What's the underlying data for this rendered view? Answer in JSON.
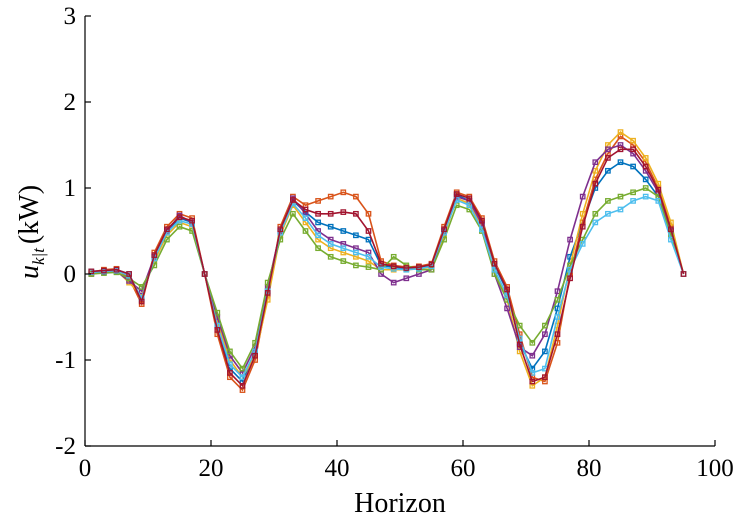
{
  "chart_data": {
    "type": "line",
    "title": "",
    "xlabel": "Horizon",
    "ylabel_main": "u",
    "ylabel_sub": "k|t",
    "ylabel_unit": "(kW)",
    "xlim": [
      0,
      100
    ],
    "ylim": [
      -2,
      3
    ],
    "xticks": [
      0,
      20,
      40,
      60,
      80,
      100
    ],
    "yticks": [
      -2,
      -1,
      0,
      1,
      2,
      3
    ],
    "xtick_labels": [
      "0",
      "20",
      "40",
      "60",
      "80",
      "100"
    ],
    "ytick_labels": [
      "-2",
      "-1",
      "0",
      "1",
      "2",
      "3"
    ],
    "grid": false,
    "legend": "none",
    "marker": "square",
    "colors": [
      "#0072bd",
      "#d95319",
      "#edb120",
      "#7e2f8e",
      "#77ac30",
      "#4dbeee",
      "#a2142f"
    ],
    "x": [
      1,
      3,
      5,
      7,
      9,
      11,
      13,
      15,
      17,
      19,
      21,
      23,
      25,
      27,
      29,
      31,
      33,
      35,
      37,
      39,
      41,
      43,
      45,
      47,
      49,
      51,
      53,
      55,
      57,
      59,
      61,
      63,
      65,
      67,
      69,
      71,
      73,
      75,
      77,
      79,
      81,
      83,
      85,
      87,
      89,
      91,
      93,
      95
    ],
    "series": [
      {
        "values": [
          0.03,
          0.04,
          0.05,
          0.0,
          -0.3,
          0.2,
          0.5,
          0.65,
          0.6,
          0.0,
          -0.6,
          -1.1,
          -1.25,
          -0.9,
          -0.2,
          0.5,
          0.85,
          0.72,
          0.6,
          0.55,
          0.5,
          0.45,
          0.4,
          0.1,
          0.08,
          0.06,
          0.07,
          0.1,
          0.5,
          0.92,
          0.85,
          0.6,
          0.1,
          -0.2,
          -0.8,
          -1.1,
          -0.9,
          -0.4,
          0.2,
          0.6,
          1.0,
          1.2,
          1.3,
          1.25,
          1.1,
          0.9,
          0.5,
          0.0
        ]
      },
      {
        "values": [
          0.02,
          0.05,
          0.06,
          -0.05,
          -0.35,
          0.25,
          0.55,
          0.7,
          0.65,
          0.0,
          -0.7,
          -1.2,
          -1.35,
          -1.0,
          -0.25,
          0.55,
          0.9,
          0.8,
          0.85,
          0.9,
          0.95,
          0.9,
          0.7,
          0.15,
          0.1,
          0.08,
          0.09,
          0.12,
          0.55,
          0.95,
          0.9,
          0.65,
          0.15,
          -0.15,
          -0.7,
          -1.2,
          -1.25,
          -0.8,
          0.0,
          0.6,
          1.1,
          1.4,
          1.6,
          1.5,
          1.3,
          1.0,
          0.55,
          0.0
        ]
      },
      {
        "values": [
          0.01,
          0.03,
          0.04,
          -0.1,
          -0.25,
          0.15,
          0.45,
          0.6,
          0.55,
          0.0,
          -0.55,
          -1.0,
          -1.2,
          -0.95,
          -0.3,
          0.45,
          0.8,
          0.6,
          0.4,
          0.3,
          0.25,
          0.2,
          0.15,
          0.05,
          0.05,
          0.05,
          0.06,
          0.08,
          0.45,
          0.88,
          0.82,
          0.55,
          0.05,
          -0.3,
          -0.9,
          -1.3,
          -1.2,
          -0.6,
          0.1,
          0.7,
          1.2,
          1.5,
          1.65,
          1.55,
          1.35,
          1.05,
          0.6,
          0.0
        ]
      },
      {
        "values": [
          0.0,
          0.02,
          0.03,
          -0.08,
          -0.2,
          0.2,
          0.5,
          0.68,
          0.6,
          0.0,
          -0.5,
          -0.95,
          -1.15,
          -0.85,
          -0.15,
          0.5,
          0.88,
          0.7,
          0.5,
          0.4,
          0.35,
          0.3,
          0.25,
          0.0,
          -0.1,
          -0.05,
          0.0,
          0.05,
          0.5,
          0.9,
          0.85,
          0.58,
          0.0,
          -0.4,
          -0.85,
          -0.95,
          -0.7,
          -0.2,
          0.4,
          0.9,
          1.3,
          1.45,
          1.5,
          1.4,
          1.2,
          0.95,
          0.5,
          0.0
        ]
      },
      {
        "values": [
          0.0,
          0.01,
          0.02,
          -0.05,
          -0.15,
          0.1,
          0.4,
          0.55,
          0.5,
          0.0,
          -0.45,
          -0.9,
          -1.1,
          -0.8,
          -0.1,
          0.4,
          0.7,
          0.5,
          0.3,
          0.2,
          0.15,
          0.1,
          0.08,
          0.05,
          0.2,
          0.1,
          0.05,
          0.05,
          0.4,
          0.8,
          0.75,
          0.5,
          0.0,
          -0.3,
          -0.6,
          -0.8,
          -0.6,
          -0.3,
          0.1,
          0.4,
          0.7,
          0.85,
          0.9,
          0.95,
          1.0,
          0.9,
          0.45,
          0.0
        ]
      },
      {
        "values": [
          0.02,
          0.03,
          0.04,
          -0.02,
          -0.28,
          0.18,
          0.48,
          0.62,
          0.58,
          0.0,
          -0.6,
          -1.05,
          -1.2,
          -0.9,
          -0.2,
          0.48,
          0.82,
          0.65,
          0.45,
          0.35,
          0.3,
          0.25,
          0.2,
          0.08,
          0.06,
          0.05,
          0.06,
          0.09,
          0.48,
          0.86,
          0.8,
          0.52,
          0.05,
          -0.25,
          -0.75,
          -1.15,
          -1.1,
          -0.5,
          0.05,
          0.35,
          0.6,
          0.7,
          0.75,
          0.85,
          0.9,
          0.85,
          0.4,
          0.0
        ]
      },
      {
        "values": [
          0.03,
          0.04,
          0.05,
          0.0,
          -0.32,
          0.22,
          0.52,
          0.66,
          0.62,
          0.0,
          -0.65,
          -1.15,
          -1.3,
          -0.95,
          -0.22,
          0.52,
          0.86,
          0.75,
          0.7,
          0.7,
          0.72,
          0.7,
          0.5,
          0.12,
          0.09,
          0.07,
          0.08,
          0.11,
          0.52,
          0.93,
          0.88,
          0.62,
          0.12,
          -0.18,
          -0.82,
          -1.25,
          -1.2,
          -0.7,
          -0.05,
          0.55,
          1.05,
          1.35,
          1.45,
          1.45,
          1.25,
          0.98,
          0.52,
          0.0
        ]
      }
    ]
  }
}
